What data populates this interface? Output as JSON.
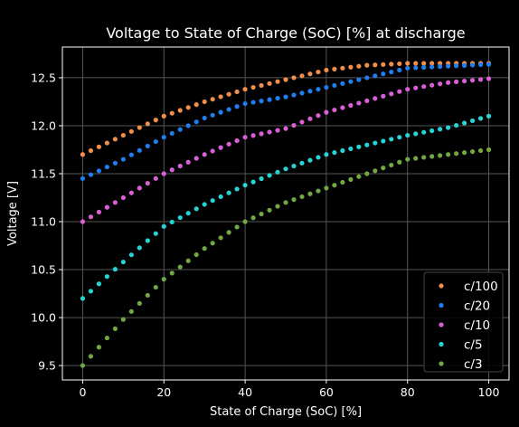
{
  "chart_data": {
    "type": "scatter",
    "title": "Voltage to State of Charge (SoC) [%] at discharge",
    "xlabel": "State of Charge (SoC) [%]",
    "ylabel": "Voltage [V]",
    "xlim": [
      -5,
      105
    ],
    "ylim": [
      9.35,
      12.82
    ],
    "xticks": [
      0,
      20,
      40,
      60,
      80,
      100
    ],
    "yticks": [
      9.5,
      10.0,
      10.5,
      11.0,
      11.5,
      12.0,
      12.5
    ],
    "xtick_labels": [
      "0",
      "20",
      "40",
      "60",
      "80",
      "100"
    ],
    "ytick_labels": [
      "9.5",
      "10.0",
      "10.5",
      "11.0",
      "11.5",
      "12.0",
      "12.5"
    ],
    "grid": true,
    "legend_position": "bottom-right",
    "background": "#000000",
    "grid_color": "#555555",
    "x_points": {
      "start": 0,
      "end": 100,
      "step": 2
    },
    "series": [
      {
        "name": "c/100",
        "color": "#f28e4b",
        "anchors_x": [
          0,
          10,
          20,
          30,
          40,
          50,
          60,
          70,
          80,
          90,
          100
        ],
        "anchors_y": [
          11.7,
          11.9,
          12.1,
          12.25,
          12.38,
          12.48,
          12.58,
          12.63,
          12.65,
          12.65,
          12.65
        ]
      },
      {
        "name": "c/20",
        "color": "#1f7ef0",
        "anchors_x": [
          0,
          10,
          20,
          30,
          40,
          50,
          60,
          70,
          80,
          90,
          100
        ],
        "anchors_y": [
          11.45,
          11.65,
          11.88,
          12.08,
          12.23,
          12.3,
          12.4,
          12.5,
          12.6,
          12.62,
          12.64
        ]
      },
      {
        "name": "c/10",
        "color": "#d95fd6",
        "anchors_x": [
          0,
          10,
          20,
          30,
          40,
          50,
          60,
          70,
          80,
          90,
          100
        ],
        "anchors_y": [
          11.0,
          11.25,
          11.5,
          11.7,
          11.88,
          11.97,
          12.14,
          12.26,
          12.38,
          12.45,
          12.49
        ]
      },
      {
        "name": "c/5",
        "color": "#27d3d3",
        "anchors_x": [
          0,
          10,
          20,
          30,
          40,
          50,
          60,
          70,
          80,
          90,
          100
        ],
        "anchors_y": [
          10.2,
          10.58,
          10.95,
          11.18,
          11.38,
          11.55,
          11.7,
          11.8,
          11.9,
          11.98,
          12.1
        ]
      },
      {
        "name": "c/3",
        "color": "#72a843",
        "anchors_x": [
          0,
          10,
          20,
          30,
          40,
          50,
          60,
          70,
          80,
          90,
          100
        ],
        "anchors_y": [
          9.5,
          9.98,
          10.4,
          10.72,
          11.0,
          11.2,
          11.35,
          11.5,
          11.65,
          11.7,
          11.75
        ]
      }
    ]
  }
}
